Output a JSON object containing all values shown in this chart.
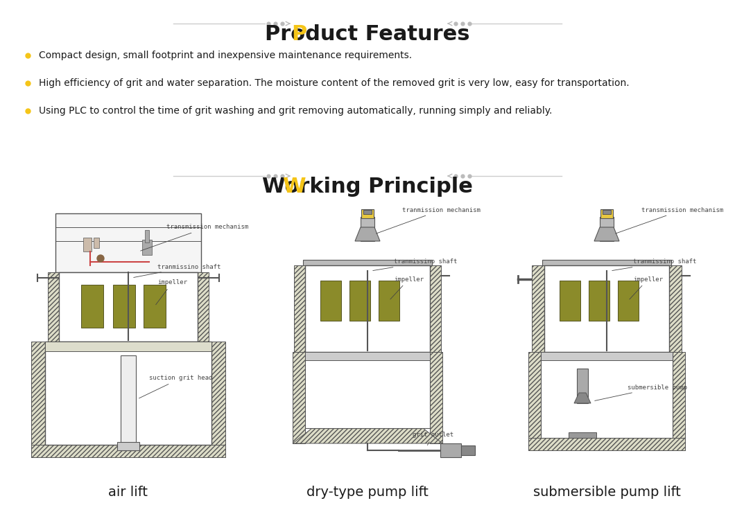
{
  "bg_color": "#ffffff",
  "title_product": "Product Features",
  "title_working": "Working Principle",
  "bullet_color": "#f5c518",
  "title_color": "#1a1a1a",
  "first_letter_color": "#f5c518",
  "line_color": "#cccccc",
  "dot_color": "#bbbbbb",
  "text_color": "#1a1a1a",
  "bullets": [
    "Compact design, small footprint and inexpensive maintenance requirements.",
    "High efficiency of grit and water separation. The moisture content of the removed grit is very low, easy for transportation.",
    "Using PLC to control the time of grit washing and grit removing automatically, running simply and reliably."
  ],
  "diagram_labels": [
    "air lift",
    "dry-type pump lift",
    "submersible pump lift"
  ],
  "impeller_color": "#8b8b2a",
  "hatch_fill": "#ddddc8",
  "diagram_line_color": "#555555",
  "annotation_color": "#444444",
  "motor_yellow": "#e8c840",
  "motor_gray": "#aaaaaa"
}
